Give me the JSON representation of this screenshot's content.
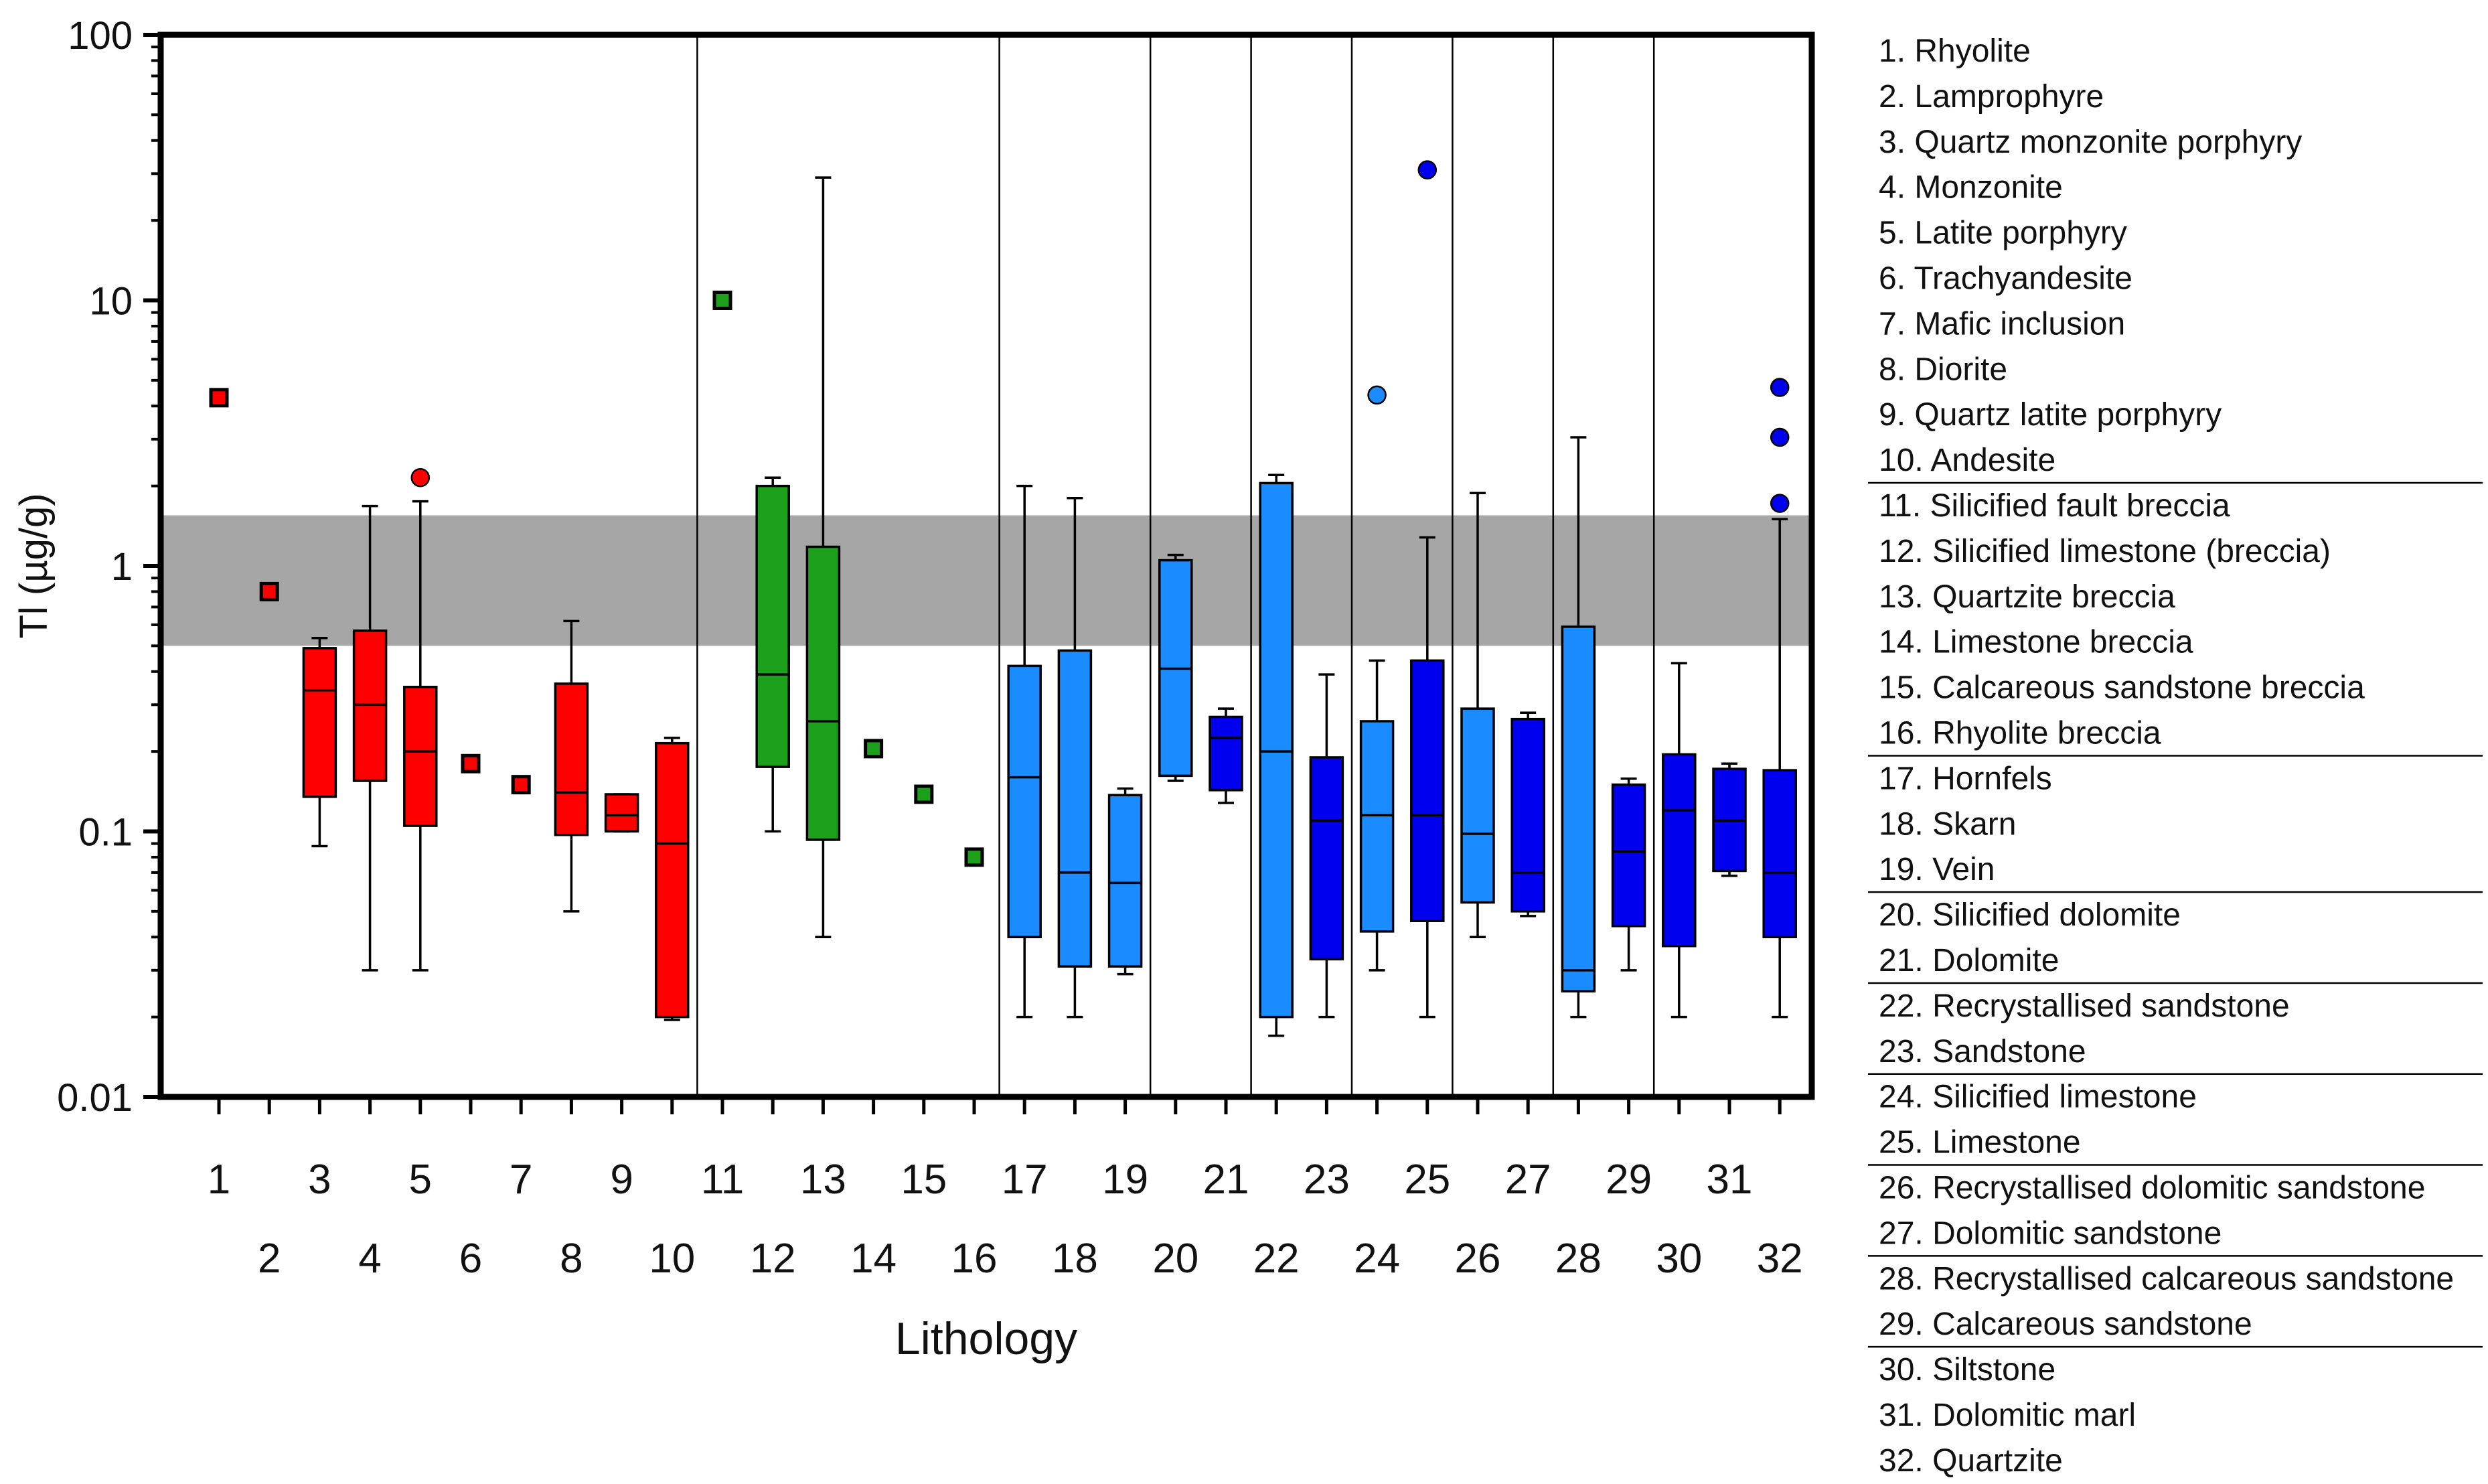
{
  "chart_data": {
    "type": "box",
    "ylabel": "Tl (µg/g)",
    "xlabel": "Lithology",
    "yscale": "log",
    "ylim": [
      0.01,
      100
    ],
    "y_tick_labels": [
      "100",
      "10",
      "1",
      "0.1",
      "0.01"
    ],
    "y_tick_values": [
      100,
      10,
      1,
      0.1,
      0.01
    ],
    "x_tick_labels_top": [
      "1",
      "3",
      "5",
      "7",
      "9",
      "11",
      "13",
      "15",
      "17",
      "19",
      "21",
      "23",
      "25",
      "27",
      "29",
      "31"
    ],
    "x_tick_labels_bottom": [
      "2",
      "4",
      "6",
      "8",
      "10",
      "12",
      "14",
      "16",
      "18",
      "20",
      "22",
      "24",
      "26",
      "28",
      "30",
      "32"
    ],
    "background_band": {
      "from": 0.5,
      "to": 1.55,
      "color": "#a6a6a6"
    },
    "group_dividers_after": [
      10,
      16,
      19,
      21,
      23,
      25,
      27,
      29
    ],
    "colors": {
      "red": "#ff0000",
      "green": "#1ca01c",
      "light_blue": "#1a8cff",
      "dark_blue": "#0000ee"
    },
    "boxes": [
      {
        "id": 1,
        "color": "red",
        "single": 4.3
      },
      {
        "id": 2,
        "color": "red",
        "single": 0.8
      },
      {
        "id": 3,
        "color": "red",
        "min": 0.088,
        "q1": 0.135,
        "median": 0.34,
        "q3": 0.49,
        "max": 0.535
      },
      {
        "id": 4,
        "color": "red",
        "min": 0.03,
        "q1": 0.155,
        "median": 0.3,
        "q3": 0.57,
        "max": 1.68
      },
      {
        "id": 5,
        "color": "red",
        "min": 0.03,
        "q1": 0.105,
        "median": 0.2,
        "q3": 0.35,
        "max": 1.75,
        "outliers": [
          2.15
        ]
      },
      {
        "id": 6,
        "color": "red",
        "single": 0.18
      },
      {
        "id": 7,
        "color": "red",
        "single": 0.15
      },
      {
        "id": 8,
        "color": "red",
        "min": 0.05,
        "q1": 0.097,
        "median": 0.14,
        "q3": 0.36,
        "max": 0.62
      },
      {
        "id": 9,
        "color": "red",
        "min": 0.1,
        "q1": 0.1,
        "median": 0.115,
        "q3": 0.138,
        "max": 0.138
      },
      {
        "id": 10,
        "color": "red",
        "min": 0.0195,
        "q1": 0.02,
        "median": 0.09,
        "q3": 0.215,
        "max": 0.225
      },
      {
        "id": 11,
        "color": "green",
        "single": 10
      },
      {
        "id": 12,
        "color": "green",
        "min": 0.1,
        "q1": 0.175,
        "median": 0.39,
        "q3": 2.0,
        "max": 2.15
      },
      {
        "id": 13,
        "color": "green",
        "min": 0.04,
        "q1": 0.093,
        "median": 0.26,
        "q3": 1.18,
        "max": 29
      },
      {
        "id": 14,
        "color": "green",
        "single": 0.205
      },
      {
        "id": 15,
        "color": "green",
        "single": 0.138
      },
      {
        "id": 16,
        "color": "green",
        "single": 0.08
      },
      {
        "id": 17,
        "color": "light_blue",
        "min": 0.02,
        "q1": 0.04,
        "median": 0.16,
        "q3": 0.42,
        "max": 2.0
      },
      {
        "id": 18,
        "color": "light_blue",
        "min": 0.02,
        "q1": 0.031,
        "median": 0.07,
        "q3": 0.48,
        "max": 1.8
      },
      {
        "id": 19,
        "color": "light_blue",
        "min": 0.029,
        "q1": 0.031,
        "median": 0.064,
        "q3": 0.137,
        "max": 0.145
      },
      {
        "id": 20,
        "color": "light_blue",
        "min": 0.155,
        "q1": 0.162,
        "median": 0.41,
        "q3": 1.05,
        "max": 1.1
      },
      {
        "id": 21,
        "color": "dark_blue",
        "min": 0.128,
        "q1": 0.143,
        "median": 0.225,
        "q3": 0.27,
        "max": 0.29
      },
      {
        "id": 22,
        "color": "light_blue",
        "min": 0.017,
        "q1": 0.02,
        "median": 0.2,
        "q3": 2.05,
        "max": 2.2
      },
      {
        "id": 23,
        "color": "dark_blue",
        "min": 0.02,
        "q1": 0.033,
        "median": 0.11,
        "q3": 0.19,
        "max": 0.39
      },
      {
        "id": 24,
        "color": "light_blue",
        "min": 0.03,
        "q1": 0.042,
        "median": 0.115,
        "q3": 0.26,
        "max": 0.44,
        "outliers": [
          4.4
        ]
      },
      {
        "id": 25,
        "color": "dark_blue",
        "min": 0.02,
        "q1": 0.046,
        "median": 0.115,
        "q3": 0.44,
        "max": 1.28,
        "outliers": [
          31
        ]
      },
      {
        "id": 26,
        "color": "light_blue",
        "min": 0.04,
        "q1": 0.054,
        "median": 0.098,
        "q3": 0.29,
        "max": 1.88
      },
      {
        "id": 27,
        "color": "dark_blue",
        "min": 0.048,
        "q1": 0.05,
        "median": 0.07,
        "q3": 0.265,
        "max": 0.28
      },
      {
        "id": 28,
        "color": "light_blue",
        "min": 0.02,
        "q1": 0.025,
        "median": 0.03,
        "q3": 0.59,
        "max": 3.05
      },
      {
        "id": 29,
        "color": "dark_blue",
        "min": 0.03,
        "q1": 0.044,
        "median": 0.084,
        "q3": 0.15,
        "max": 0.158
      },
      {
        "id": 30,
        "color": "dark_blue",
        "min": 0.02,
        "q1": 0.037,
        "median": 0.12,
        "q3": 0.195,
        "max": 0.43
      },
      {
        "id": 31,
        "color": "dark_blue",
        "min": 0.068,
        "q1": 0.071,
        "median": 0.11,
        "q3": 0.172,
        "max": 0.18
      },
      {
        "id": 32,
        "color": "dark_blue",
        "min": 0.02,
        "q1": 0.04,
        "median": 0.07,
        "q3": 0.17,
        "max": 1.5,
        "outliers": [
          1.72,
          3.05,
          4.7
        ]
      }
    ],
    "legend": {
      "items": [
        "1. Rhyolite",
        "2. Lamprophyre",
        "3. Quartz monzonite porphyry",
        "4. Monzonite",
        "5. Latite porphyry",
        "6. Trachyandesite",
        "7. Mafic inclusion",
        "8. Diorite",
        "9. Quartz latite porphyry",
        "10. Andesite",
        "11. Silicified fault breccia",
        "12. Silicified limestone (breccia)",
        "13. Quartzite breccia",
        "14. Limestone breccia",
        "15. Calcareous sandstone breccia",
        "16. Rhyolite breccia",
        "17. Hornfels",
        "18. Skarn",
        "19. Vein",
        "20. Silicified dolomite",
        "21. Dolomite",
        "22. Recrystallised sandstone",
        "23. Sandstone",
        "24. Silicified limestone",
        "25. Limestone",
        "26. Recrystallised dolomitic sandstone",
        "27. Dolomitic sandstone",
        "28. Recrystallised calcareous sandstone",
        "29. Calcareous sandstone",
        "30. Siltstone",
        "31. Dolomitic marl",
        "32. Quartzite"
      ],
      "separators_after": [
        10,
        16,
        19,
        21,
        23,
        25,
        27,
        29
      ]
    }
  }
}
